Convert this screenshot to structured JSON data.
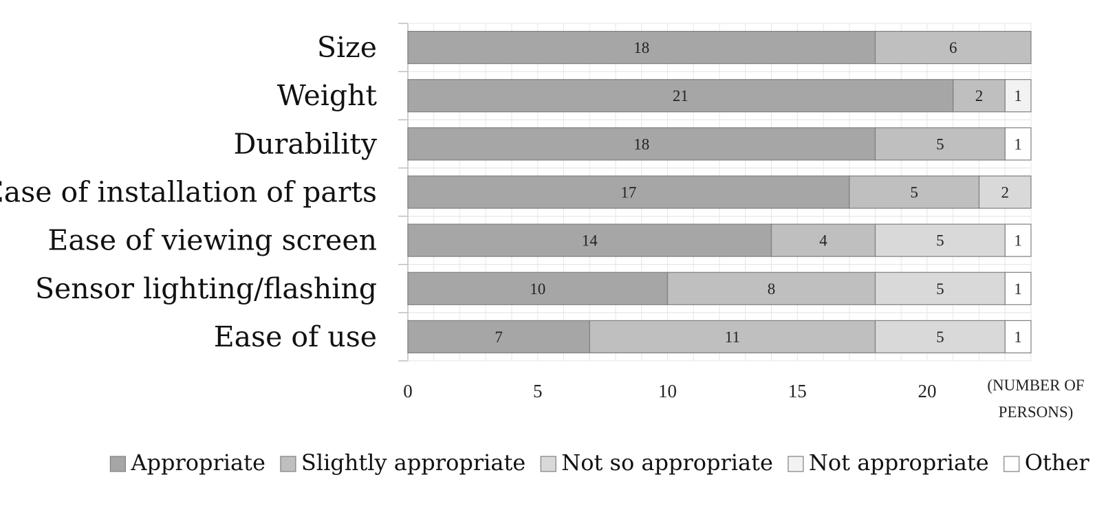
{
  "chart_data": {
    "type": "bar",
    "orientation": "horizontal",
    "stacked": true,
    "categories": [
      "Size",
      "Weight",
      "Durability",
      "Ease of installation of parts",
      "Ease of viewing screen",
      "Sensor lighting/flashing",
      "Ease of use"
    ],
    "series": [
      {
        "name": "Appropriate",
        "color": "#a6a6a6",
        "values": [
          18,
          21,
          18,
          17,
          14,
          10,
          7
        ]
      },
      {
        "name": "Slightly appropriate",
        "color": "#bfbfbf",
        "values": [
          6,
          2,
          5,
          5,
          4,
          8,
          11
        ]
      },
      {
        "name": "Not so appropriate",
        "color": "#d9d9d9",
        "values": [
          0,
          0,
          0,
          2,
          5,
          5,
          5
        ]
      },
      {
        "name": "Not appropriate",
        "color": "#f2f2f2",
        "values": [
          0,
          1,
          0,
          0,
          0,
          0,
          0
        ]
      },
      {
        "name": "Other",
        "color": "#ffffff",
        "values": [
          0,
          0,
          1,
          0,
          1,
          1,
          1
        ]
      }
    ],
    "xlim": [
      0,
      24
    ],
    "xticks": [
      0,
      5,
      10,
      15,
      20
    ],
    "xlabel_lines": [
      "(NUMBER OF",
      "PERSONS)"
    ],
    "grid": true,
    "legend_position": "bottom"
  }
}
